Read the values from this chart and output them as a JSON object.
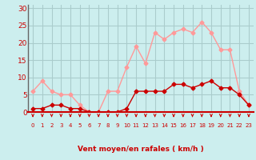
{
  "hours": [
    0,
    1,
    2,
    3,
    4,
    5,
    6,
    7,
    8,
    9,
    10,
    11,
    12,
    13,
    14,
    15,
    16,
    17,
    18,
    19,
    20,
    21,
    22,
    23
  ],
  "vent_moyen": [
    1,
    1,
    2,
    2,
    1,
    1,
    0,
    0,
    0,
    0,
    1,
    6,
    6,
    6,
    6,
    8,
    8,
    7,
    8,
    9,
    7,
    7,
    5,
    2
  ],
  "rafales": [
    6,
    9,
    6,
    5,
    5,
    2,
    0,
    0,
    6,
    6,
    13,
    19,
    14,
    23,
    21,
    23,
    24,
    23,
    26,
    23,
    18,
    18,
    6,
    2
  ],
  "color_moyen": "#cc0000",
  "color_rafales": "#ff9999",
  "bg_color": "#cceeee",
  "grid_color": "#aacccc",
  "xlabel": "Vent moyen/en rafales ( km/h )",
  "ylabel_ticks": [
    0,
    5,
    10,
    15,
    20,
    25,
    30
  ],
  "ylim": [
    0,
    31
  ],
  "xlim": [
    -0.5,
    23.5
  ],
  "arrow_color": "#cc0000",
  "tick_color": "#cc0000",
  "xlabel_color": "#cc0000",
  "axis_left_color": "#666666"
}
